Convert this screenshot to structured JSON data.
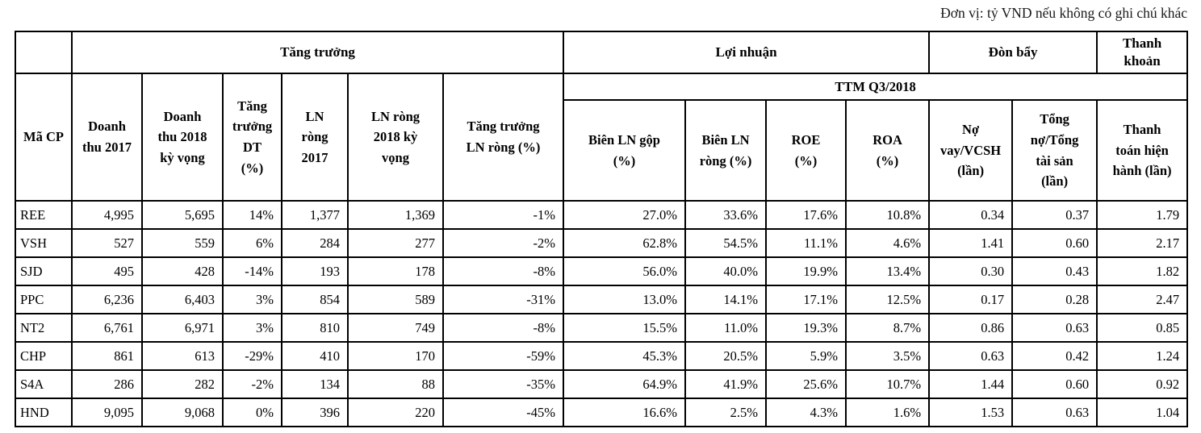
{
  "unit_note": "Đơn vị: tỷ VND nếu không có ghi chú khác",
  "table": {
    "group_headers": [
      "Tăng trưởng",
      "Lợi nhuận",
      "Đòn bẩy",
      "Thanh\nkhoản"
    ],
    "period_banner": "TTM Q3/2018",
    "column_headers": [
      "Mã CP",
      "Doanh\nthu 2017",
      "Doanh\nthu 2018\nkỳ vọng",
      "Tăng\ntrưởng\nDT\n(%)",
      "LN\nròng\n2017",
      "LN ròng\n2018 kỳ\nvọng",
      "Tăng trưởng\nLN ròng (%)",
      "Biên LN gộp\n(%)",
      "Biên LN\nròng (%)",
      "ROE\n(%)",
      "ROA\n(%)",
      "Nợ\nvay/VCSH\n(lần)",
      "Tổng\nnợ/Tổng\ntài sản\n(lần)",
      "Thanh\ntoán hiện\nhành (lần)"
    ],
    "rows": [
      [
        "REE",
        "4,995",
        "5,695",
        "14%",
        "1,377",
        "1,369",
        "-1%",
        "27.0%",
        "33.6%",
        "17.6%",
        "10.8%",
        "0.34",
        "0.37",
        "1.79"
      ],
      [
        "VSH",
        "527",
        "559",
        "6%",
        "284",
        "277",
        "-2%",
        "62.8%",
        "54.5%",
        "11.1%",
        "4.6%",
        "1.41",
        "0.60",
        "2.17"
      ],
      [
        "SJD",
        "495",
        "428",
        "-14%",
        "193",
        "178",
        "-8%",
        "56.0%",
        "40.0%",
        "19.9%",
        "13.4%",
        "0.30",
        "0.43",
        "1.82"
      ],
      [
        "PPC",
        "6,236",
        "6,403",
        "3%",
        "854",
        "589",
        "-31%",
        "13.0%",
        "14.1%",
        "17.1%",
        "12.5%",
        "0.17",
        "0.28",
        "2.47"
      ],
      [
        "NT2",
        "6,761",
        "6,971",
        "3%",
        "810",
        "749",
        "-8%",
        "15.5%",
        "11.0%",
        "19.3%",
        "8.7%",
        "0.86",
        "0.63",
        "0.85"
      ],
      [
        "CHP",
        "861",
        "613",
        "-29%",
        "410",
        "170",
        "-59%",
        "45.3%",
        "20.5%",
        "5.9%",
        "3.5%",
        "0.63",
        "0.42",
        "1.24"
      ],
      [
        "S4A",
        "286",
        "282",
        "-2%",
        "134",
        "88",
        "-35%",
        "64.9%",
        "41.9%",
        "25.6%",
        "10.7%",
        "1.44",
        "0.60",
        "0.92"
      ],
      [
        "HND",
        "9,095",
        "9,068",
        "0%",
        "396",
        "220",
        "-45%",
        "16.6%",
        "2.5%",
        "4.3%",
        "1.6%",
        "1.53",
        "0.63",
        "1.04"
      ]
    ]
  },
  "colors": {
    "border": "#000000",
    "text": "#000000",
    "background": "#ffffff"
  }
}
